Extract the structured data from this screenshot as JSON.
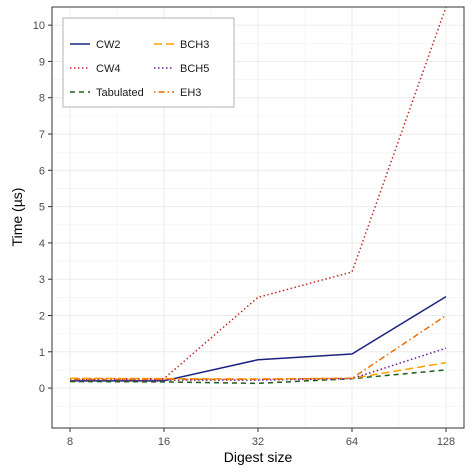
{
  "chart_data": {
    "type": "line",
    "xlabel": "Digest size",
    "ylabel": "Time (µs)",
    "x": [
      "8",
      "16",
      "32",
      "64",
      "128"
    ],
    "x_scale": "log2",
    "yticks": [
      "0",
      "1",
      "2",
      "3",
      "4",
      "5",
      "6",
      "7",
      "8",
      "9",
      "10"
    ],
    "ylim": [
      -1.1,
      10.5
    ],
    "grid": true,
    "legend_position": "top-left",
    "series": [
      {
        "name": "CW2",
        "color": "#1a237e",
        "dash": "solid",
        "values": [
          0.2,
          0.2,
          0.78,
          0.94,
          2.52
        ]
      },
      {
        "name": "CW4",
        "color": "#c62828",
        "dash": "dotted",
        "values": [
          0.25,
          0.26,
          2.5,
          3.2,
          10.5
        ]
      },
      {
        "name": "Tabulated",
        "color": "#1b5e20",
        "dash": "dashed",
        "values": [
          0.18,
          0.17,
          0.13,
          0.26,
          0.5
        ]
      },
      {
        "name": "BCH3",
        "color": "#ffa000",
        "dash": "longdash",
        "values": [
          0.27,
          0.26,
          0.25,
          0.27,
          0.7
        ]
      },
      {
        "name": "BCH5",
        "color": "#6a1b9a",
        "dash": "dotted",
        "values": [
          0.22,
          0.22,
          0.22,
          0.26,
          1.1
        ]
      },
      {
        "name": "EH3",
        "color": "#ef6c00",
        "dash": "dotdash",
        "values": [
          0.24,
          0.24,
          0.24,
          0.27,
          2.0
        ]
      }
    ]
  }
}
